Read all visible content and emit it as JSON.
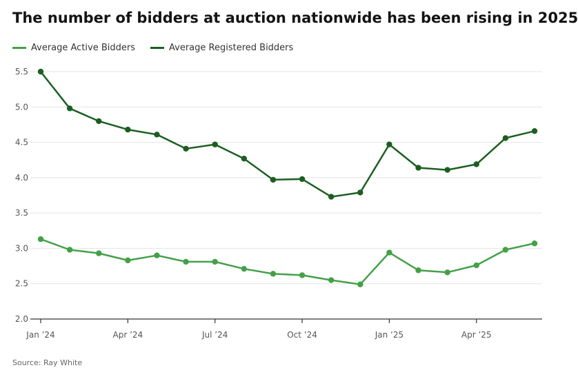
{
  "title": "The number of bidders at auction nationwide has been rising in 2025",
  "source": "Source: Ray White",
  "colors": {
    "active": "#43a047",
    "registered": "#1b5e20",
    "grid": "#e3e3e3",
    "axis": "#333333"
  },
  "chart_data": {
    "type": "line",
    "title": "The number of bidders at auction nationwide has been rising in 2025",
    "x": [
      "Jan 2024",
      "Feb 2024",
      "Mar 2024",
      "Apr 2024",
      "May 2024",
      "Jun 2024",
      "Jul 2024",
      "Aug 2024",
      "Sep 2024",
      "Oct 2024",
      "Nov 2024",
      "Dec 2024",
      "Jan 2025",
      "Feb 2025",
      "Mar 2025",
      "Apr 2025",
      "May 2025",
      "Jun 2025"
    ],
    "x_tick_labels": [
      {
        "index": 0,
        "label": "Jan ’24"
      },
      {
        "index": 3,
        "label": "Apr ’24"
      },
      {
        "index": 6,
        "label": "Jul ’24"
      },
      {
        "index": 9,
        "label": "Oct ’24"
      },
      {
        "index": 12,
        "label": "Jan ’25"
      },
      {
        "index": 15,
        "label": "Apr ’25"
      }
    ],
    "y_ticks": [
      "2.0",
      "2.5",
      "3.0",
      "3.5",
      "4.0",
      "4.5",
      "5.0",
      "5.5"
    ],
    "ylim": [
      2.0,
      5.5
    ],
    "xlabel": "",
    "ylabel": "",
    "grid": true,
    "legend_position": "top-left",
    "series": [
      {
        "name": "Average Active Bidders",
        "color": "#43a047",
        "values": [
          3.13,
          2.98,
          2.93,
          2.83,
          2.9,
          2.81,
          2.81,
          2.71,
          2.64,
          2.62,
          2.55,
          2.49,
          2.94,
          2.69,
          2.66,
          2.76,
          2.98,
          3.07
        ]
      },
      {
        "name": "Average Registered Bidders",
        "color": "#1b5e20",
        "values": [
          5.5,
          4.98,
          4.8,
          4.68,
          4.61,
          4.41,
          4.47,
          4.27,
          3.97,
          3.98,
          3.73,
          3.79,
          4.47,
          4.14,
          4.11,
          4.19,
          4.56,
          4.66
        ]
      }
    ]
  }
}
